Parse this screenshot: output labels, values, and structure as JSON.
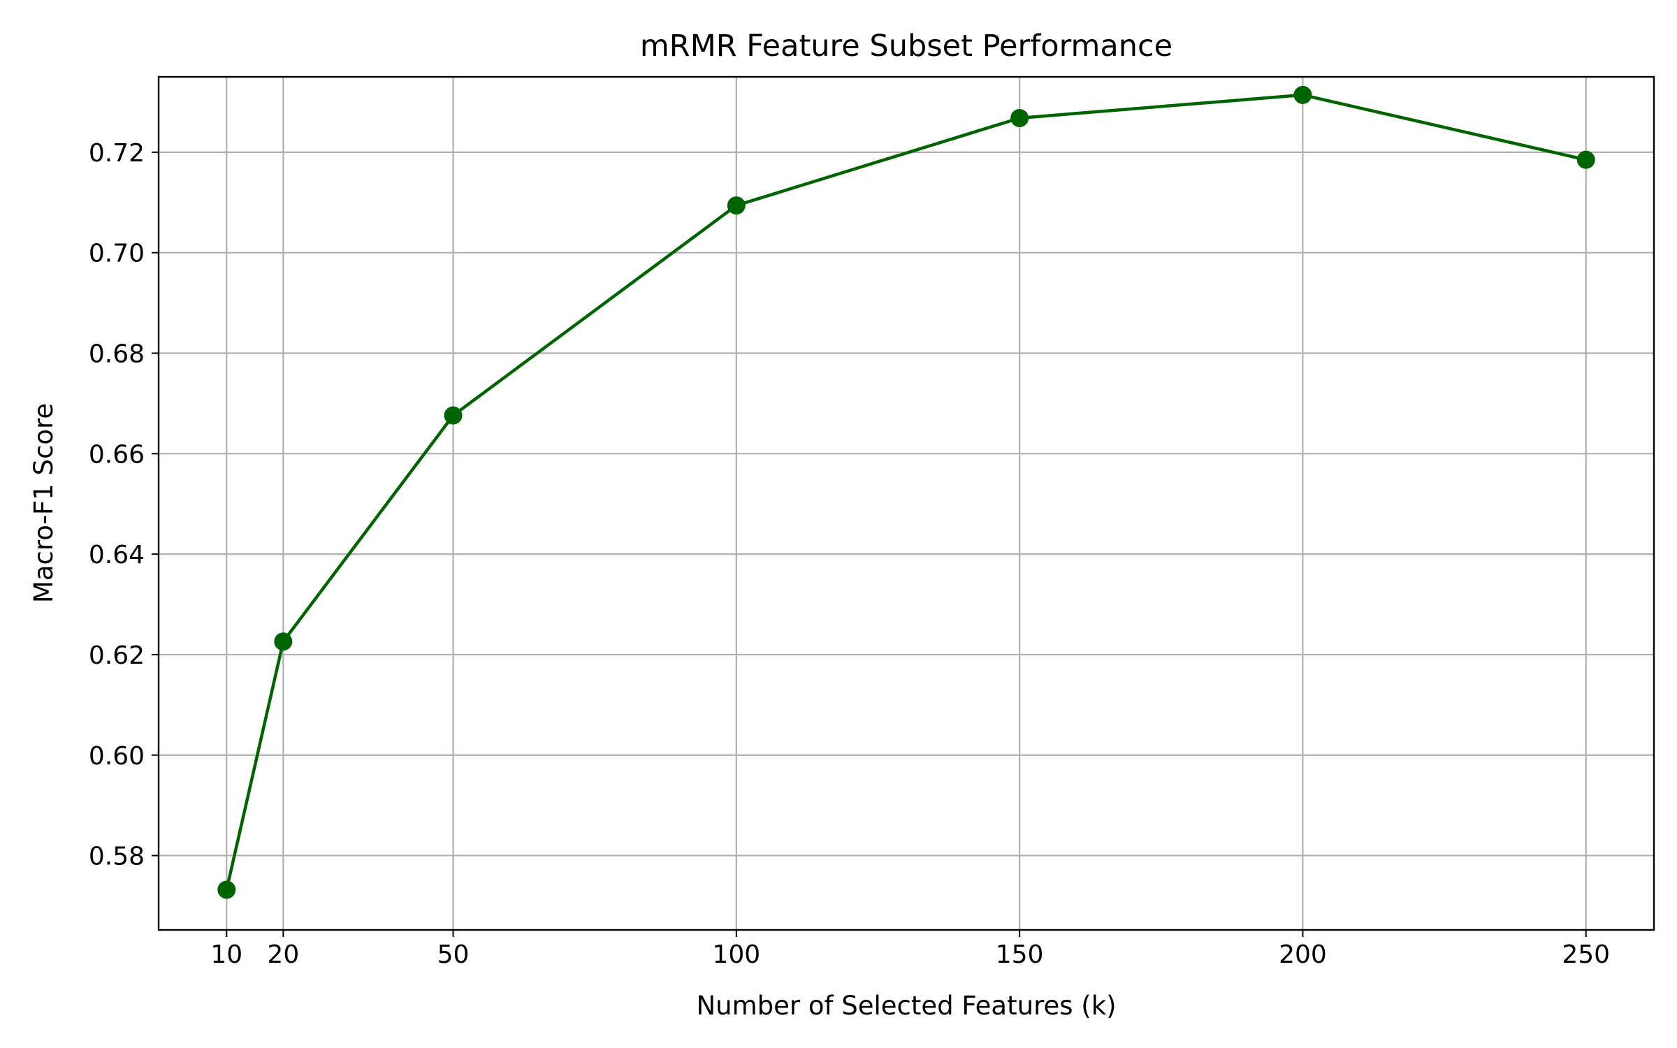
{
  "chart_data": {
    "type": "line",
    "title": "mRMR Feature Subset Performance",
    "xlabel": "Number of Selected Features (k)",
    "ylabel": "Macro-F1 Score",
    "x": [
      10,
      20,
      50,
      100,
      150,
      200,
      250
    ],
    "series": [
      {
        "values": [
          0.5732,
          0.6226,
          0.6676,
          0.7094,
          0.7268,
          0.7314,
          0.7185
        ],
        "color": "#006400",
        "marker": "circle"
      }
    ],
    "xlim": [
      -2,
      262
    ],
    "ylim": [
      0.5652,
      0.735
    ],
    "xticks": [
      10,
      20,
      50,
      100,
      150,
      200,
      250
    ],
    "xtick_labels": [
      "10",
      "20",
      "50",
      "100",
      "150",
      "200",
      "250"
    ],
    "yticks": [
      0.58,
      0.6,
      0.62,
      0.64,
      0.66,
      0.68,
      0.7,
      0.72
    ],
    "ytick_labels": [
      "0.58",
      "0.60",
      "0.62",
      "0.64",
      "0.66",
      "0.68",
      "0.70",
      "0.72"
    ],
    "grid": true,
    "grid_color": "#b0b0b0",
    "legend": false
  }
}
